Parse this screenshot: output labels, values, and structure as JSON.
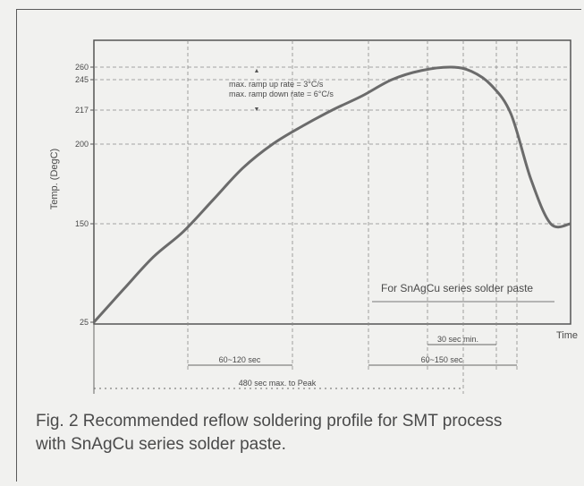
{
  "chart_data": {
    "type": "line",
    "ylabel": "Temp. (DegC)",
    "xlabel": "Time",
    "y_ticks": [
      25,
      150,
      200,
      217,
      245,
      260
    ],
    "ylim": [
      25,
      290
    ],
    "xlim": [
      0,
      480
    ],
    "grid": true,
    "series": [
      {
        "x": [
          0,
          30,
          60,
          90,
          120,
          150,
          180,
          210,
          240,
          270,
          300,
          330,
          360,
          380,
          400,
          420,
          440,
          460,
          480
        ],
        "y": [
          25,
          67,
          108,
          140,
          165,
          185,
          200,
          209,
          217,
          230,
          245,
          256,
          260,
          255,
          240,
          215,
          178,
          150,
          150
        ]
      }
    ],
    "annotations": {
      "ramp_up": "max. ramp up rate = 3°C/s",
      "ramp_down": "max. ramp down rate = 6°C/s",
      "series_note": "For SnAgCu series solder paste",
      "dim_60_120": "60~120 sec",
      "dim_60_150": "60~150 sec",
      "dim_30": "30 sec min.",
      "dim_480": "480 sec max. to Peak"
    }
  },
  "caption": {
    "line1": "Fig. 2 Recommended reflow soldering profile for SMT process",
    "line2": "with SnAgCu series solder paste."
  }
}
